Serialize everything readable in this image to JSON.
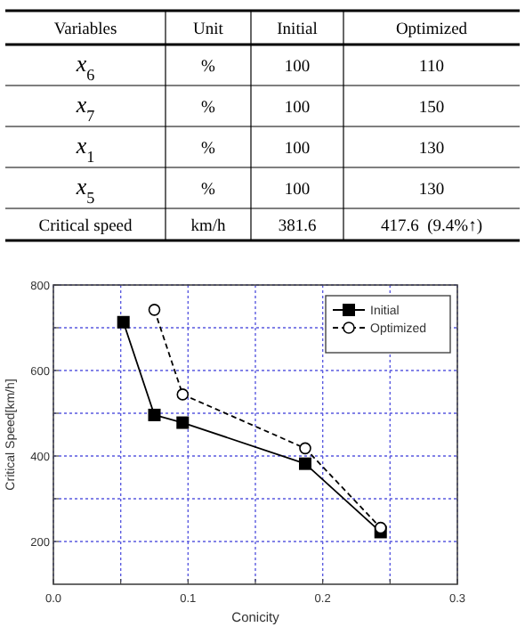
{
  "chart_data": [
    {
      "type": "other",
      "categories": [
        "Variables",
        "Unit",
        "Initial",
        "Optimized"
      ],
      "y_categories": [
        "x$_{6}$",
        "x$_{7}$",
        "x$_{1}$",
        "x$_{5}$",
        "Critical  speed"
      ],
      "cell_labels": [
        [
          "%",
          "100",
          "110"
        ],
        [
          "%",
          "100",
          "150"
        ],
        [
          "%",
          "100",
          "130"
        ],
        [
          "%",
          "100",
          "130"
        ],
        [
          "km/h",
          "381.6",
          "417.6  (9.4%↑)"
        ]
      ]
    },
    {
      "type": "line",
      "xlabel": "Conicity",
      "ylabel": "Critical Speed[km/h]",
      "xlim": [
        0,
        0.3
      ],
      "ylim": [
        100,
        800
      ],
      "xticks": [
        {
          "value": 0,
          "label": "0.0"
        },
        {
          "value": 0.05,
          "label": null
        },
        {
          "value": 0.1,
          "label": "0.1"
        },
        {
          "value": 0.15,
          "label": null
        },
        {
          "value": 0.2,
          "label": "0.2"
        },
        {
          "value": 0.25,
          "label": null
        },
        {
          "value": 0.3,
          "label": "0.3"
        }
      ],
      "yticks": [
        200,
        {
          "value": 300,
          "label": null
        },
        400,
        {
          "value": 500,
          "label": null
        },
        600,
        {
          "value": 700,
          "label": null
        },
        800
      ],
      "grid": true,
      "legend": "top right",
      "series": [
        {
          "name": "Initial",
          "color": "#000000",
          "marker": "square",
          "line_style": "solid",
          "x": [
            0.052,
            0.075,
            0.096,
            0.187,
            0.243
          ],
          "values": [
            713,
            496,
            478,
            382,
            222
          ]
        },
        {
          "name": "Optimized",
          "color": "#000000",
          "marker": "circle",
          "line_style": "dashed",
          "x": [
            0.075,
            0.096,
            0.187,
            0.243
          ],
          "values": [
            742,
            544,
            418,
            232
          ]
        }
      ]
    }
  ]
}
